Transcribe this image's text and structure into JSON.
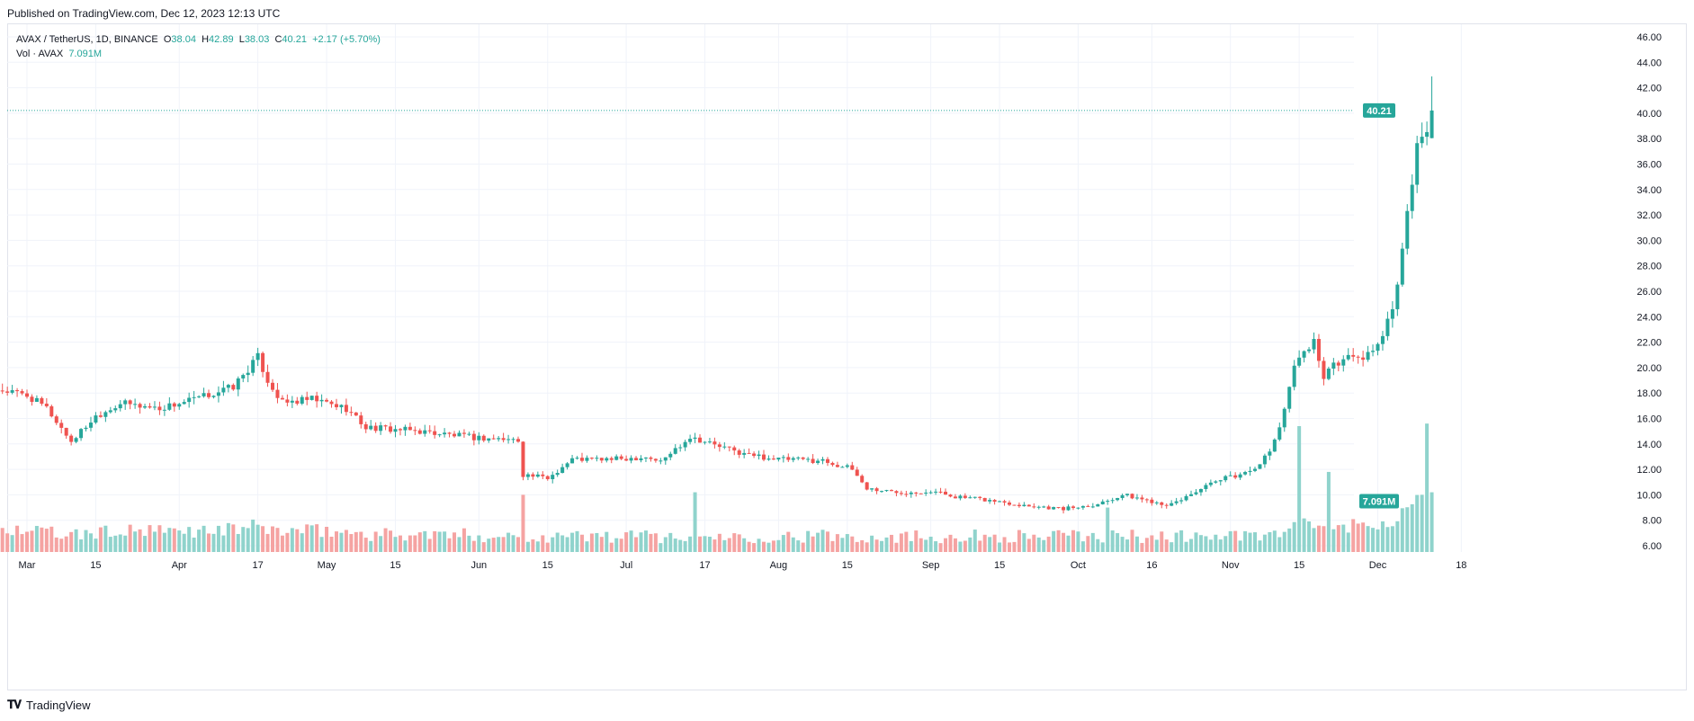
{
  "header": {
    "published": "Published on TradingView.com, Dec 12, 2023 12:13 UTC"
  },
  "legend": {
    "symbol": "AVAX / TetherUS, 1D, BINANCE",
    "o_label": "O",
    "o_value": "38.04",
    "h_label": "H",
    "h_value": "42.89",
    "l_label": "L",
    "l_value": "38.03",
    "c_label": "C",
    "c_value": "40.21",
    "change": "+2.17 (+5.70%)",
    "vol_label": "Vol · AVAX",
    "vol_value": "7.091M"
  },
  "footer": {
    "brand": "TradingView"
  },
  "colors": {
    "up": "#26a69a",
    "down": "#ef5350",
    "up_vol": "#8fd3cc",
    "down_vol": "#f5a3a2",
    "grid": "#f0f3fa",
    "text": "#131722"
  },
  "chart_data": {
    "type": "candlestick",
    "symbol": "AVAX / TetherUS",
    "interval": "1D",
    "exchange": "BINANCE",
    "x_start_date": "2023-02-24",
    "x_end_date": "2023-12-12",
    "x_ticks": [
      "Mar",
      "15",
      "Apr",
      "17",
      "May",
      "15",
      "Jun",
      "15",
      "Jul",
      "17",
      "Aug",
      "15",
      "Sep",
      "15",
      "Oct",
      "16",
      "Nov",
      "15",
      "Dec",
      "18"
    ],
    "y_ticks": [
      "46.00",
      "44.00",
      "42.00",
      "40.00",
      "38.00",
      "36.00",
      "34.00",
      "32.00",
      "30.00",
      "28.00",
      "26.00",
      "24.00",
      "22.00",
      "20.00",
      "18.00",
      "16.00",
      "14.00",
      "12.00",
      "10.00",
      "8.00",
      "6.00"
    ],
    "price_range": [
      5,
      47
    ],
    "last_price_label": "40.21",
    "last_volume_label": "7.091M",
    "close_keypoints": [
      [
        "2023-02-24",
        18.2
      ],
      [
        "2023-03-01",
        17.8
      ],
      [
        "2023-03-05",
        16.8
      ],
      [
        "2023-03-10",
        14.2
      ],
      [
        "2023-03-15",
        16.2
      ],
      [
        "2023-03-20",
        17.2
      ],
      [
        "2023-03-28",
        16.8
      ],
      [
        "2023-04-05",
        17.6
      ],
      [
        "2023-04-12",
        18.5
      ],
      [
        "2023-04-17",
        20.8
      ],
      [
        "2023-04-19",
        19.0
      ],
      [
        "2023-04-22",
        17.2
      ],
      [
        "2023-04-28",
        17.5
      ],
      [
        "2023-05-05",
        16.8
      ],
      [
        "2023-05-09",
        15.3
      ],
      [
        "2023-05-20",
        15.0
      ],
      [
        "2023-05-31",
        14.5
      ],
      [
        "2023-06-09",
        14.3
      ],
      [
        "2023-06-10",
        11.6
      ],
      [
        "2023-06-15",
        11.3
      ],
      [
        "2023-06-20",
        12.8
      ],
      [
        "2023-06-29",
        12.8
      ],
      [
        "2023-07-05",
        13.0
      ],
      [
        "2023-07-08",
        12.6
      ],
      [
        "2023-07-14",
        14.6
      ],
      [
        "2023-07-20",
        13.8
      ],
      [
        "2023-07-25",
        13.2
      ],
      [
        "2023-08-01",
        12.8
      ],
      [
        "2023-08-10",
        12.7
      ],
      [
        "2023-08-16",
        12.0
      ],
      [
        "2023-08-19",
        10.5
      ],
      [
        "2023-08-25",
        10.2
      ],
      [
        "2023-09-01",
        10.3
      ],
      [
        "2023-09-07",
        9.8
      ],
      [
        "2023-09-12",
        9.6
      ],
      [
        "2023-09-20",
        9.2
      ],
      [
        "2023-09-28",
        8.9
      ],
      [
        "2023-10-05",
        9.3
      ],
      [
        "2023-10-10",
        10.0
      ],
      [
        "2023-10-16",
        9.5
      ],
      [
        "2023-10-20",
        9.2
      ],
      [
        "2023-10-25",
        10.3
      ],
      [
        "2023-10-31",
        11.3
      ],
      [
        "2023-11-04",
        11.7
      ],
      [
        "2023-11-07",
        12.5
      ],
      [
        "2023-11-09",
        13.3
      ],
      [
        "2023-11-12",
        16.5
      ],
      [
        "2023-11-14",
        20.5
      ],
      [
        "2023-11-18",
        22.0
      ],
      [
        "2023-11-20",
        19.4
      ],
      [
        "2023-11-24",
        20.8
      ],
      [
        "2023-11-28",
        20.8
      ],
      [
        "2023-12-02",
        22.2
      ],
      [
        "2023-12-05",
        26.2
      ],
      [
        "2023-12-07",
        32.0
      ],
      [
        "2023-12-09",
        37.5
      ],
      [
        "2023-12-11",
        38.04
      ],
      [
        "2023-12-12",
        40.21
      ]
    ],
    "last_candle": {
      "open": 38.04,
      "high": 42.89,
      "low": 38.03,
      "close": 40.21,
      "change": 2.17,
      "change_pct": 5.7,
      "volume": "7.091M"
    },
    "volume_spikes": [
      [
        "2023-06-10",
        10.0
      ],
      [
        "2023-07-15",
        10.2
      ],
      [
        "2023-10-07",
        9.0
      ],
      [
        "2023-11-15",
        15.4
      ],
      [
        "2023-11-21",
        11.8
      ],
      [
        "2023-12-11",
        15.6
      ]
    ]
  }
}
